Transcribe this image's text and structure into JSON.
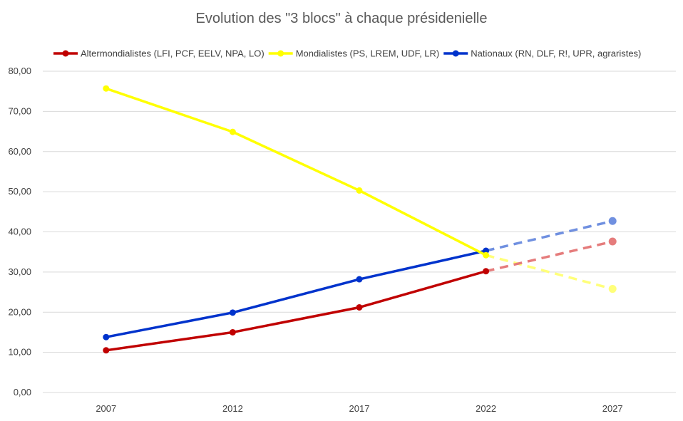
{
  "chart_data": {
    "type": "line",
    "title": "Evolution des \"3 blocs\" à chaque présidenielle",
    "xlabel": "",
    "ylabel": "",
    "categories": [
      "2007",
      "2012",
      "2017",
      "2022",
      "2027"
    ],
    "ylim": [
      0,
      80
    ],
    "y_ticks": [
      "0,00",
      "10,00",
      "20,00",
      "30,00",
      "40,00",
      "50,00",
      "60,00",
      "70,00",
      "80,00"
    ],
    "grid": true,
    "legend_position": "top",
    "projection_from_index": 3,
    "series": [
      {
        "name": "Altermondialistes (LFI, PCF, EELV, NPA, LO)",
        "color": "#c00000",
        "projection_color": "#e57c7c",
        "values": [
          10.5,
          15.0,
          21.2,
          30.2,
          37.6
        ]
      },
      {
        "name": "Mondialistes (PS, LREM, UDF, LR)",
        "color": "#ffff00",
        "projection_color": "#ffff7a",
        "values": [
          75.7,
          64.9,
          50.3,
          34.2,
          25.8
        ]
      },
      {
        "name": "Nationaux (RN, DLF, R!, UPR, agraristes)",
        "color": "#0033cc",
        "projection_color": "#7090e0",
        "values": [
          13.8,
          19.9,
          28.2,
          35.3,
          42.7
        ]
      }
    ]
  }
}
